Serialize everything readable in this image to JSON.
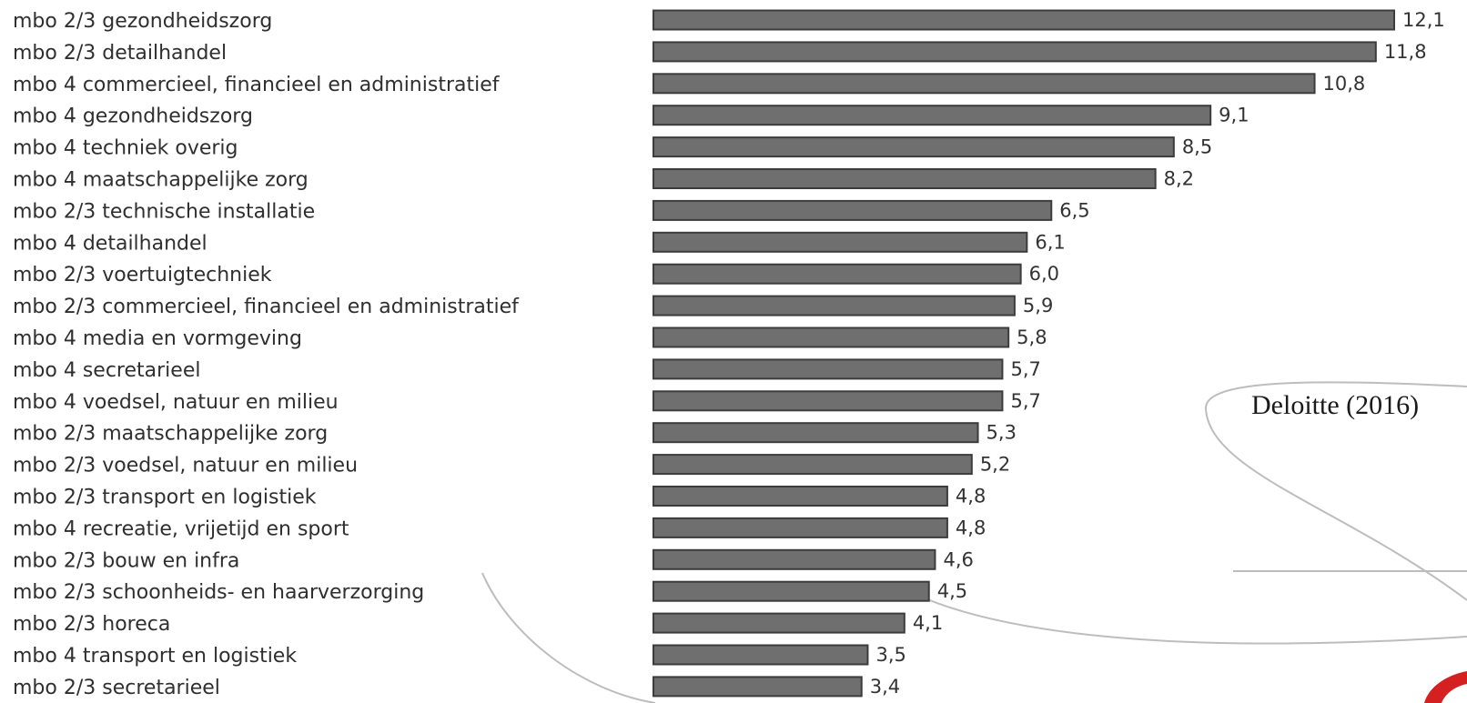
{
  "chart_data": {
    "type": "bar",
    "orientation": "horizontal",
    "categories": [
      "mbo 2/3 gezondheidszorg",
      "mbo 2/3 detailhandel",
      "mbo 4 commercieel, financieel en administratief",
      "mbo 4 gezondheidszorg",
      "mbo 4 techniek overig",
      "mbo 4 maatschappelijke zorg",
      "mbo 2/3 technische installatie",
      "mbo 4 detailhandel",
      "mbo 2/3 voertuigtechniek",
      "mbo 2/3 commercieel, financieel en administratief",
      "mbo 4 media en vormgeving",
      "mbo 4 secretarieel",
      "mbo 4 voedsel, natuur en milieu",
      "mbo 2/3 maatschappelijke zorg",
      "mbo 2/3 voedsel, natuur en milieu",
      "mbo 2/3 transport en logistiek",
      "mbo 4 recreatie, vrijetijd en sport",
      "mbo 2/3 bouw en infra",
      "mbo 2/3 schoonheids- en haarverzorging",
      "mbo 2/3 horeca",
      "mbo 4 transport en logistiek",
      "mbo 2/3 secretarieel"
    ],
    "values": [
      12.1,
      11.8,
      10.8,
      9.1,
      8.5,
      8.2,
      6.5,
      6.1,
      6.0,
      5.9,
      5.8,
      5.7,
      5.7,
      5.3,
      5.2,
      4.8,
      4.8,
      4.6,
      4.5,
      4.1,
      3.5,
      3.4
    ],
    "value_labels": [
      "12,1",
      "11,8",
      "10,8",
      "9,1",
      "8,5",
      "8,2",
      "6,5",
      "6,1",
      "6,0",
      "5,9",
      "5,8",
      "5,7",
      "5,7",
      "5,3",
      "5,2",
      "4,8",
      "4,8",
      "4,6",
      "4,5",
      "4,1",
      "3,5",
      "3,4"
    ],
    "xlim": [
      0,
      12.1
    ],
    "grid": false,
    "legend": false,
    "bar_color": "#6f6f6f"
  },
  "annotation": {
    "source": "Deloitte (2016)"
  },
  "colors": {
    "bar_fill": "#6f6f6f",
    "bar_stroke": "#3c3c3c",
    "background": "#ffffff"
  }
}
